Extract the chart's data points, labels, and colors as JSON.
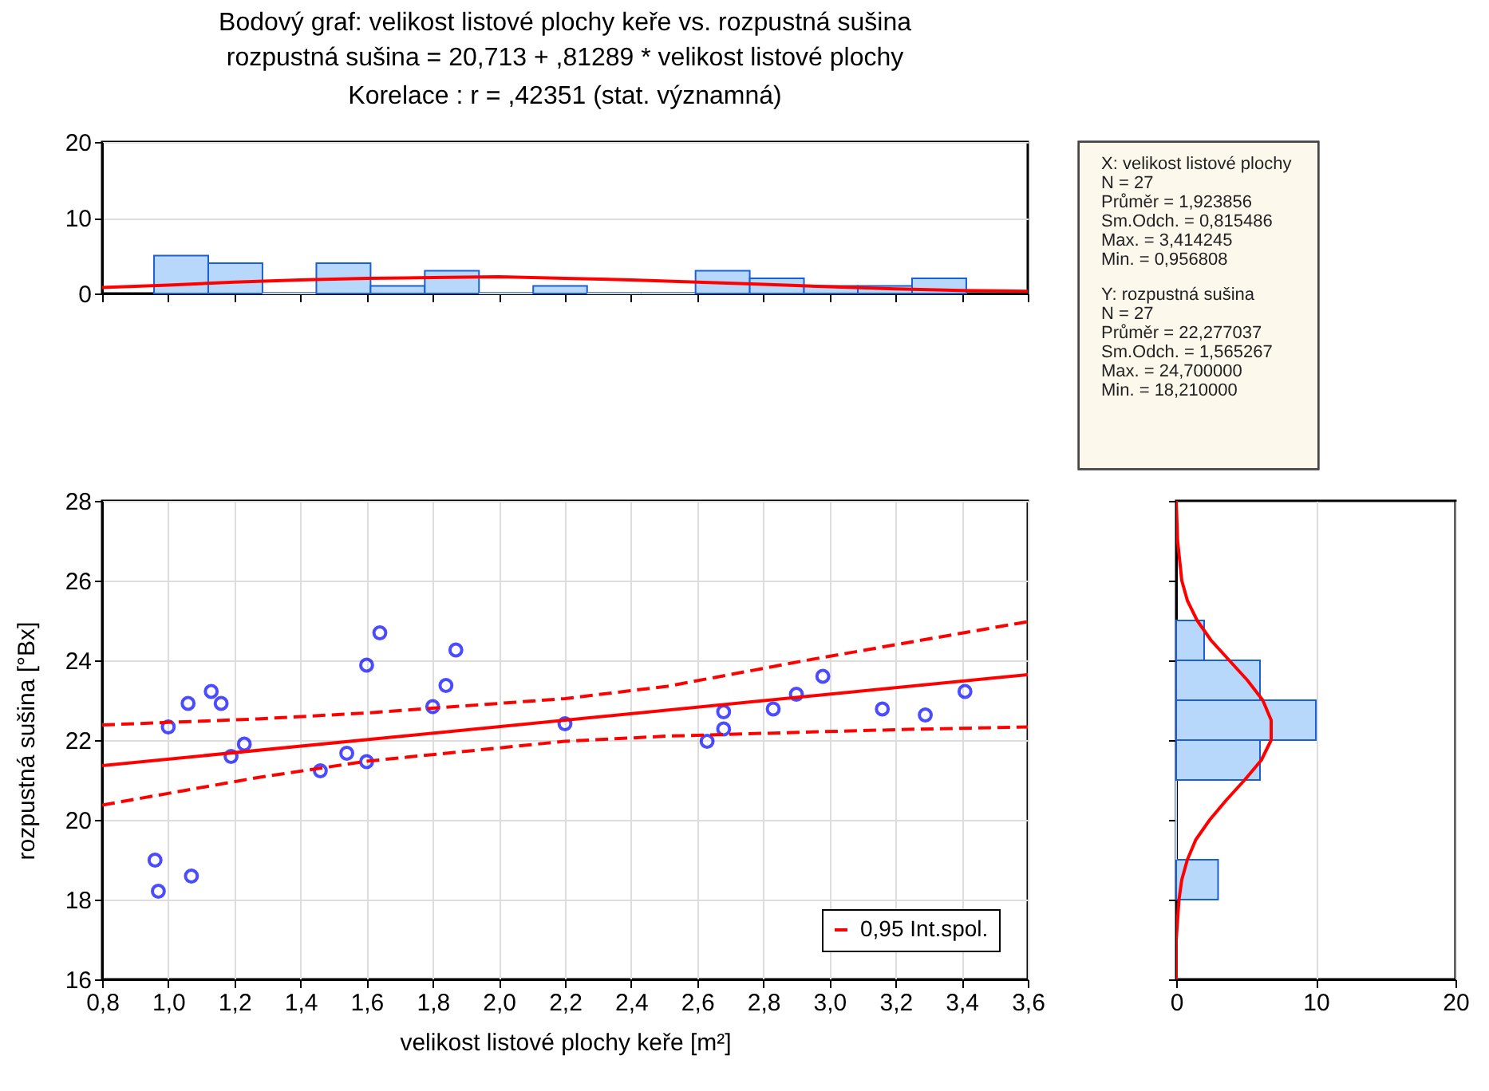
{
  "chart_data": [
    {
      "type": "histogram",
      "title": "Bodový graf: velikost listové plochy keře vs. rozpustná sušina",
      "subtitle": "rozpustná sušina = 20,713 + ,81289 * velikost listové plochy",
      "annotations": [
        "Korelace :   r = ,42351 (stat. významná)"
      ],
      "bins": [
        0.957,
        1.121,
        1.285,
        1.448,
        1.612,
        1.776,
        1.94,
        2.104,
        2.267,
        2.431,
        2.595,
        2.759,
        2.923,
        3.086,
        3.25,
        3.414
      ],
      "series": [
        {
          "type": "histogram",
          "color": "#b8d8fb",
          "values": [
            5,
            4,
            0,
            4,
            1,
            3,
            0,
            1,
            0,
            0,
            3,
            2,
            1,
            1,
            2
          ]
        },
        {
          "type": "line",
          "color": "#ff0000",
          "x": [
            0.8,
            1.0,
            1.2,
            1.4,
            1.6,
            1.8,
            2.0,
            2.2,
            2.4,
            2.6,
            2.8,
            3.0,
            3.2,
            3.4,
            3.6
          ],
          "values": [
            0.8,
            1.1,
            1.5,
            1.8,
            2.0,
            2.1,
            2.2,
            2.0,
            1.8,
            1.5,
            1.2,
            0.9,
            0.6,
            0.4,
            0.3
          ]
        }
      ],
      "xlim": [
        0.8,
        3.6
      ],
      "xticks": [
        {
          "value": 0.8,
          "label": null
        },
        {
          "value": 1.0,
          "label": null
        },
        {
          "value": 1.2,
          "label": null
        },
        {
          "value": 1.4,
          "label": null
        },
        {
          "value": 1.6,
          "label": null
        },
        {
          "value": 1.8,
          "label": null
        },
        {
          "value": 2.0,
          "label": null
        },
        {
          "value": 2.2,
          "label": null
        },
        {
          "value": 2.4,
          "label": null
        },
        {
          "value": 2.6,
          "label": null
        },
        {
          "value": 2.8,
          "label": null
        },
        {
          "value": 3.0,
          "label": null
        },
        {
          "value": 3.2,
          "label": null
        },
        {
          "value": 3.4,
          "label": null
        },
        {
          "value": 3.6,
          "label": null
        }
      ],
      "ylim": [
        0,
        20
      ],
      "yticks": [
        0,
        10,
        20
      ],
      "grid": "y",
      "tick_labels": "y"
    },
    {
      "type": "other",
      "annotations": [
        "X:  velikost listové plochy",
        "N = 27",
        "Průměr = 1,923856",
        "Sm.Odch. = 0,815486",
        "Max. = 3,414245",
        "Min. = 0,956808",
        "Y:  rozpustná sušina",
        "N = 27",
        "Průměr = 22,277037",
        "Sm.Odch. = 1,565267",
        "Max. = 24,700000",
        "Min. = 18,210000"
      ]
    },
    {
      "type": "scatter",
      "xlabel": "velikost listové plochy keře [m²]",
      "ylabel": "rozpustná sušina [°Bx]",
      "series": [
        {
          "type": "scatter",
          "color": "#0000ff",
          "marker": "circle",
          "x": [
            0.96,
            0.97,
            1.0,
            1.06,
            1.07,
            1.13,
            1.16,
            1.19,
            1.23,
            1.46,
            1.54,
            1.6,
            1.6,
            1.64,
            1.8,
            1.84,
            1.87,
            2.2,
            2.63,
            2.68,
            2.68,
            2.83,
            2.9,
            2.98,
            3.16,
            3.29,
            3.41
          ],
          "values": [
            18.99,
            18.21,
            22.33,
            22.92,
            18.59,
            23.22,
            22.92,
            21.59,
            21.9,
            21.23,
            21.67,
            23.88,
            21.46,
            24.69,
            22.84,
            23.37,
            24.26,
            22.41,
            21.97,
            22.71,
            22.28,
            22.78,
            23.15,
            23.6,
            22.78,
            22.63,
            23.22
          ]
        },
        {
          "type": "line",
          "color": "#ff0000",
          "line_style": "solid",
          "x": [
            0.8,
            3.6
          ],
          "values": [
            21.36,
            23.64
          ]
        },
        {
          "type": "line",
          "color": "#ff0000",
          "line_style": "dashed",
          "name": "0,95 Int.spol.",
          "x": [
            0.8,
            1.27,
            1.6,
            2.2,
            2.51,
            2.93,
            3.24,
            3.6
          ],
          "values": [
            22.38,
            22.53,
            22.68,
            23.04,
            23.35,
            24.0,
            24.45,
            24.97
          ]
        },
        {
          "type": "line",
          "color": "#ff0000",
          "line_style": "dashed",
          "x": [
            0.8,
            1.27,
            1.6,
            2.2,
            2.51,
            2.93,
            3.24,
            3.6
          ],
          "values": [
            20.37,
            21.06,
            21.47,
            21.97,
            22.1,
            22.2,
            22.27,
            22.33
          ]
        }
      ],
      "xlim": [
        0.8,
        3.6
      ],
      "xticks": [
        {
          "value": 0.8,
          "label": "0,8"
        },
        {
          "value": 1.0,
          "label": "1,0"
        },
        {
          "value": 1.2,
          "label": "1,2"
        },
        {
          "value": 1.4,
          "label": "1,4"
        },
        {
          "value": 1.6,
          "label": "1,6"
        },
        {
          "value": 1.8,
          "label": "1,8"
        },
        {
          "value": 2.0,
          "label": "2,0"
        },
        {
          "value": 2.2,
          "label": "2,2"
        },
        {
          "value": 2.4,
          "label": "2,4"
        },
        {
          "value": 2.6,
          "label": "2,6"
        },
        {
          "value": 2.8,
          "label": "2,8"
        },
        {
          "value": 3.0,
          "label": "3,0"
        },
        {
          "value": 3.2,
          "label": "3,2"
        },
        {
          "value": 3.4,
          "label": "3,4"
        },
        {
          "value": 3.6,
          "label": "3,6"
        }
      ],
      "ylim": [
        16,
        28
      ],
      "yticks": [
        16,
        18,
        20,
        22,
        24,
        26,
        28
      ],
      "grid": true,
      "legend": "bottom right"
    },
    {
      "type": "histogram",
      "orientation": "horizontal",
      "bins": [
        18,
        19,
        20,
        21,
        22,
        23,
        24,
        25
      ],
      "series": [
        {
          "type": "histogram",
          "color": "#b8d8fb",
          "values": [
            3,
            0,
            0,
            6,
            10,
            6,
            2
          ]
        },
        {
          "type": "line",
          "color": "#ff0000",
          "x": [
            16,
            17,
            18,
            18.5,
            19,
            19.5,
            20,
            20.5,
            21,
            21.5,
            22,
            22.5,
            23,
            23.5,
            24,
            24.5,
            25,
            25.5,
            26,
            27,
            28
          ],
          "values": [
            0.0,
            0.0,
            0.2,
            0.4,
            0.8,
            1.4,
            2.4,
            3.6,
            4.9,
            6.1,
            6.8,
            6.8,
            6.2,
            5.1,
            3.8,
            2.5,
            1.5,
            0.8,
            0.4,
            0.1,
            0.0
          ]
        }
      ],
      "xlim": [
        0,
        20
      ],
      "xticks": [
        0,
        10,
        20
      ],
      "ylim": [
        16,
        28
      ],
      "yticks": [
        {
          "value": 16,
          "label": null
        },
        {
          "value": 18,
          "label": null
        },
        {
          "value": 20,
          "label": null
        },
        {
          "value": 22,
          "label": null
        },
        {
          "value": 24,
          "label": null
        },
        {
          "value": 26,
          "label": null
        },
        {
          "value": 28,
          "label": null
        }
      ],
      "grid": "x",
      "tick_labels": "x"
    }
  ]
}
